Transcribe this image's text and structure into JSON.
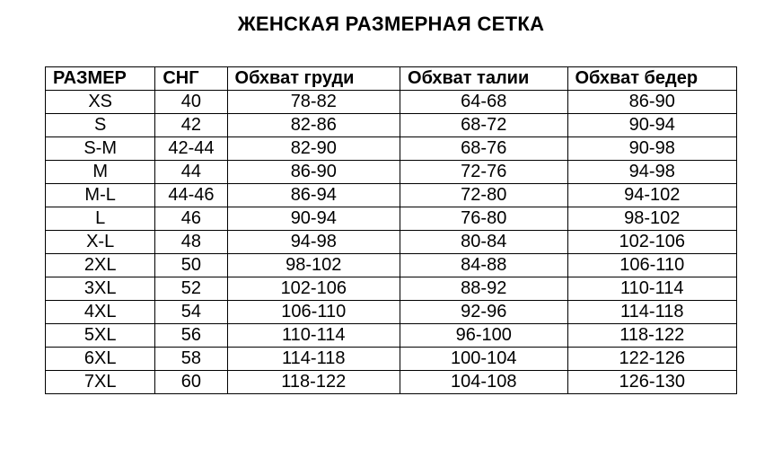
{
  "title": "ЖЕНСКАЯ РАЗМЕРНАЯ СЕТКА",
  "table": {
    "columns": [
      "РАЗМЕР",
      "СНГ",
      "Обхват груди",
      "Обхват талии",
      "Обхват бедер"
    ],
    "rows": [
      [
        "XS",
        "40",
        "78-82",
        "64-68",
        "86-90"
      ],
      [
        "S",
        "42",
        "82-86",
        "68-72",
        "90-94"
      ],
      [
        "S-M",
        "42-44",
        "82-90",
        "68-76",
        "90-98"
      ],
      [
        "M",
        "44",
        "86-90",
        "72-76",
        "94-98"
      ],
      [
        "M-L",
        "44-46",
        "86-94",
        "72-80",
        "94-102"
      ],
      [
        "L",
        "46",
        "90-94",
        "76-80",
        "98-102"
      ],
      [
        "X-L",
        "48",
        "94-98",
        "80-84",
        "102-106"
      ],
      [
        "2XL",
        "50",
        "98-102",
        "84-88",
        "106-110"
      ],
      [
        "3XL",
        "52",
        "102-106",
        "88-92",
        "110-114"
      ],
      [
        "4XL",
        "54",
        "106-110",
        "92-96",
        "114-118"
      ],
      [
        "5XL",
        "56",
        "110-114",
        "96-100",
        "118-122"
      ],
      [
        "6XL",
        "58",
        "114-118",
        "100-104",
        "122-126"
      ],
      [
        "7XL",
        "60",
        "118-122",
        "104-108",
        "126-130"
      ]
    ]
  }
}
